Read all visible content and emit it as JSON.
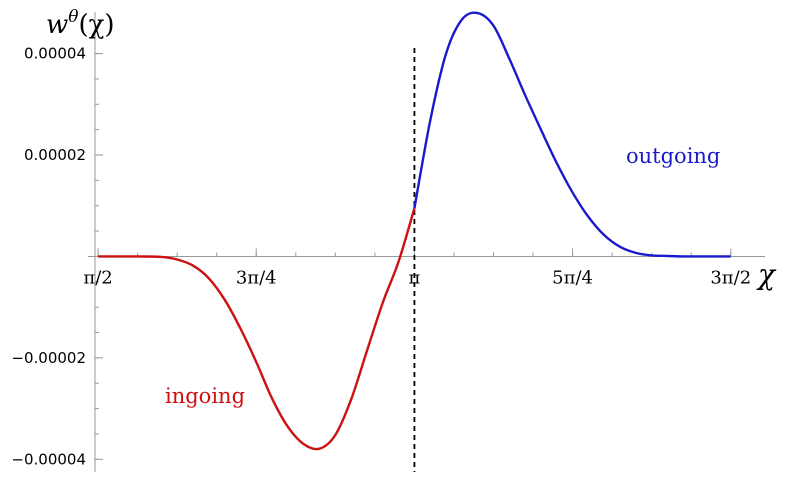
{
  "chart_data": {
    "type": "line",
    "title": "",
    "xlabel": "χ",
    "ylabel": {
      "base": "w",
      "sup": "θ",
      "arg": "(χ)"
    },
    "x_domain": [
      1.5708,
      4.7124
    ],
    "xlim": [
      1.5208,
      4.8824
    ],
    "ylim": [
      -4.25e-05,
      4.82e-05
    ],
    "x_ticks": [
      {
        "value": 1.5708,
        "label": "π/2"
      },
      {
        "value": 2.3562,
        "label": "3π/4"
      },
      {
        "value": 3.1416,
        "label": "π"
      },
      {
        "value": 3.927,
        "label": "5π/4"
      },
      {
        "value": 4.7124,
        "label": "3π/2"
      }
    ],
    "y_ticks": [
      {
        "value": 4e-05,
        "label": "0.00004"
      },
      {
        "value": 2e-05,
        "label": "0.00002"
      },
      {
        "value": -2e-05,
        "label": "−0.00002"
      },
      {
        "value": -4e-05,
        "label": "−0.00004"
      }
    ],
    "y_minor_step": 5e-06,
    "x_minor_step": 0.19635,
    "grid": false,
    "vertical_line": {
      "x": 3.1416,
      "style": "dashed",
      "color": "#000000"
    },
    "series": [
      {
        "name": "ingoing",
        "color": "#cc1111",
        "x": [
          1.5708,
          1.7671,
          1.885,
          1.9635,
          2.042,
          2.1206,
          2.1991,
          2.2777,
          2.3562,
          2.4347,
          2.5133,
          2.5918,
          2.6704,
          2.7489,
          2.8274,
          2.906,
          2.9845,
          3.0631,
          3.1416
        ],
        "y": [
          0.0,
          0.0,
          -1e-07,
          -6e-07,
          -1.8e-06,
          -4.3e-06,
          -8.5e-06,
          -1.42e-05,
          -2.08e-05,
          -2.8e-05,
          -3.36e-05,
          -3.7e-05,
          -3.79e-05,
          -3.52e-05,
          -2.82e-05,
          -1.86e-05,
          -9.1e-06,
          -1e-06,
          9.5e-06
        ]
      },
      {
        "name": "outgoing",
        "color": "#1a1acc",
        "x": [
          3.1416,
          3.2201,
          3.2987,
          3.3772,
          3.4558,
          3.5343,
          3.6128,
          3.6914,
          3.7699,
          3.8485,
          3.927,
          4.0055,
          4.0841,
          4.1626,
          4.2412,
          4.3197,
          4.3982,
          4.4768,
          4.5553,
          4.6339,
          4.7124
        ],
        "y": [
          9.5e-06,
          2.68e-05,
          4e-05,
          4.67e-05,
          4.8e-05,
          4.55e-05,
          3.9e-05,
          3.18e-05,
          2.5e-05,
          1.84e-05,
          1.26e-05,
          7.8e-06,
          4.2e-06,
          1.9e-06,
          7e-07,
          2e-07,
          1e-07,
          0.0,
          0.0,
          0.0,
          0.0
        ]
      }
    ]
  }
}
